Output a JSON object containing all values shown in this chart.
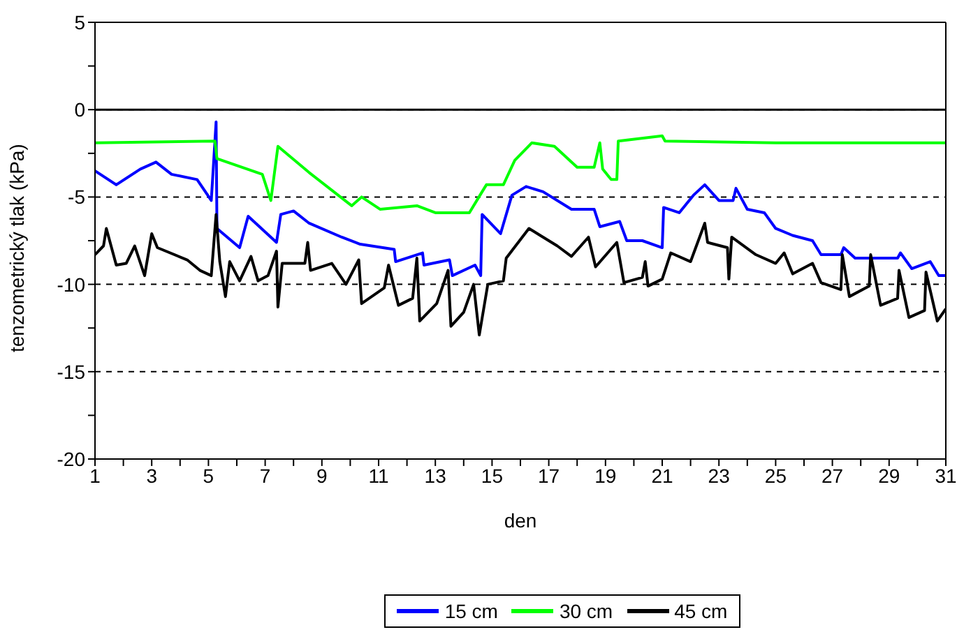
{
  "chart_data": {
    "type": "line",
    "xlabel": "den",
    "ylabel": "tenzometrický tlak (kPa)",
    "xlim": [
      1,
      31
    ],
    "xticks": [
      1,
      {
        "value": 2,
        "label": null
      },
      3,
      {
        "value": 4,
        "label": null
      },
      5,
      {
        "value": 6,
        "label": null
      },
      7,
      {
        "value": 8,
        "label": null
      },
      9,
      {
        "value": 10,
        "label": null
      },
      11,
      {
        "value": 12,
        "label": null
      },
      13,
      {
        "value": 14,
        "label": null
      },
      15,
      {
        "value": 16,
        "label": null
      },
      17,
      {
        "value": 18,
        "label": null
      },
      19,
      {
        "value": 20,
        "label": null
      },
      21,
      {
        "value": 22,
        "label": null
      },
      23,
      {
        "value": 24,
        "label": null
      },
      25,
      {
        "value": 26,
        "label": null
      },
      27,
      {
        "value": 28,
        "label": null
      },
      29,
      {
        "value": 30,
        "label": null
      },
      31
    ],
    "ylim": [
      -20,
      5
    ],
    "yticks": [
      -20,
      {
        "value": -17.5,
        "label": null
      },
      -15,
      {
        "value": -12.5,
        "label": null
      },
      -10,
      {
        "value": -7.5,
        "label": null
      },
      -5,
      {
        "value": -2.5,
        "label": null
      },
      0,
      {
        "value": 2.5,
        "label": null
      },
      5
    ],
    "grid": "y",
    "legend": "bottom",
    "marker": "none",
    "line_style": "solid",
    "ref_lines": [
      {
        "axis": "y",
        "value": 0,
        "label": null,
        "color": "#000000",
        "line_style": "solid"
      }
    ],
    "series": [
      {
        "name": "15 cm",
        "color": "#0000ff",
        "x": [
          1,
          1.75,
          2.6,
          3.15,
          3.7,
          4.6,
          5.1,
          5.27,
          5.3,
          6.1,
          6.4,
          7.4,
          7.55,
          8,
          8.55,
          9.7,
          10.35,
          11.55,
          11.6,
          12.55,
          12.6,
          13.5,
          13.6,
          14.4,
          14.6,
          14.65,
          15.3,
          15.7,
          16.2,
          16.8,
          17.8,
          18.6,
          18.8,
          19.5,
          19.75,
          20.3,
          21,
          21.05,
          21.6,
          22.1,
          22.5,
          23,
          23.5,
          23.6,
          24,
          24.6,
          25,
          25.6,
          26.3,
          26.6,
          27.3,
          27.4,
          27.8,
          29.3,
          29.4,
          29.8,
          30.45,
          30.75,
          31
        ],
        "values": [
          -3.5,
          -4.3,
          -3.4,
          -3.0,
          -3.7,
          -4.0,
          -5.2,
          -0.7,
          -6.8,
          -7.9,
          -6.1,
          -7.6,
          -6.0,
          -5.8,
          -6.5,
          -7.3,
          -7.7,
          -8.0,
          -8.7,
          -8.2,
          -8.9,
          -8.6,
          -9.5,
          -8.9,
          -9.5,
          -6.0,
          -7.1,
          -4.9,
          -4.4,
          -4.7,
          -5.7,
          -5.7,
          -6.7,
          -6.4,
          -7.5,
          -7.5,
          -7.9,
          -5.6,
          -5.9,
          -4.9,
          -4.3,
          -5.2,
          -5.2,
          -4.5,
          -5.7,
          -5.9,
          -6.8,
          -7.2,
          -7.5,
          -8.3,
          -8.3,
          -7.9,
          -8.5,
          -8.5,
          -8.2,
          -9.1,
          -8.7,
          -9.5,
          -9.5
        ]
      },
      {
        "name": "30 cm",
        "color": "#00ff00",
        "x": [
          1,
          5.23,
          5.3,
          6.9,
          7.2,
          7.45,
          8.55,
          10.05,
          10.4,
          11.05,
          12.35,
          13,
          14.2,
          14.5,
          14.8,
          15.4,
          15.8,
          16.4,
          17.2,
          18.0,
          18.6,
          18.8,
          18.9,
          19.2,
          19.4,
          19.45,
          21,
          21.1,
          25,
          31
        ],
        "values": [
          -1.9,
          -1.8,
          -2.8,
          -3.7,
          -5.2,
          -2.1,
          -3.6,
          -5.5,
          -5.0,
          -5.7,
          -5.5,
          -5.9,
          -5.9,
          -5.1,
          -4.3,
          -4.3,
          -2.9,
          -1.9,
          -2.1,
          -3.3,
          -3.3,
          -1.9,
          -3.4,
          -4.0,
          -4.0,
          -1.8,
          -1.5,
          -1.8,
          -1.9,
          -1.9
        ]
      },
      {
        "name": "45 cm",
        "color": "#000000",
        "x": [
          1,
          1.3,
          1.4,
          1.75,
          2.1,
          2.4,
          2.75,
          3,
          3.2,
          4.25,
          4.7,
          5.1,
          5.27,
          5.4,
          5.6,
          5.75,
          6.1,
          6.5,
          6.75,
          7.1,
          7.4,
          7.45,
          7.6,
          8.4,
          8.5,
          8.6,
          9.35,
          9.85,
          10.3,
          10.4,
          11.2,
          11.35,
          11.7,
          12.2,
          12.35,
          12.45,
          13.05,
          13.45,
          13.55,
          14,
          14.35,
          14.55,
          14.85,
          15.4,
          15.5,
          16.3,
          16.7,
          17.3,
          17.8,
          18.4,
          18.65,
          19.4,
          19.65,
          20.3,
          20.4,
          20.5,
          21,
          21.3,
          22,
          22.5,
          22.6,
          23.3,
          23.35,
          23.45,
          24.3,
          25,
          25.3,
          25.6,
          26.3,
          26.6,
          27.3,
          27.35,
          27.6,
          28.3,
          28.35,
          28.7,
          29.3,
          29.35,
          29.7,
          30.25,
          30.3,
          30.7,
          31
        ],
        "values": [
          -8.3,
          -7.8,
          -6.8,
          -8.9,
          -8.8,
          -7.8,
          -9.5,
          -7.1,
          -7.9,
          -8.6,
          -9.2,
          -9.5,
          -6.0,
          -8.7,
          -10.7,
          -8.7,
          -9.8,
          -8.4,
          -9.8,
          -9.5,
          -8.1,
          -11.3,
          -8.8,
          -8.8,
          -7.6,
          -9.2,
          -8.8,
          -10.0,
          -8.6,
          -11.1,
          -10.2,
          -8.9,
          -11.2,
          -10.8,
          -8.5,
          -12.1,
          -11.1,
          -9.2,
          -12.4,
          -11.6,
          -10.0,
          -12.9,
          -10.0,
          -9.8,
          -8.5,
          -6.8,
          -7.2,
          -7.8,
          -8.4,
          -7.3,
          -9.0,
          -7.6,
          -9.9,
          -9.6,
          -8.7,
          -10.1,
          -9.7,
          -8.2,
          -8.7,
          -6.5,
          -7.6,
          -7.9,
          -9.7,
          -7.3,
          -8.3,
          -8.8,
          -8.2,
          -9.4,
          -8.8,
          -9.9,
          -10.3,
          -8.3,
          -10.7,
          -10.1,
          -8.3,
          -11.2,
          -10.8,
          -9.2,
          -11.9,
          -11.5,
          -9.3,
          -12.1,
          -11.4
        ]
      }
    ]
  }
}
